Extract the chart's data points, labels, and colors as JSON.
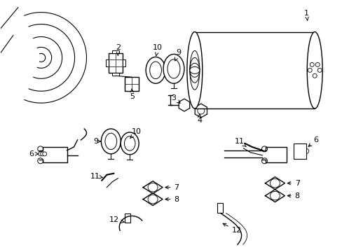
{
  "background_color": "#ffffff",
  "line_color": "#000000",
  "figure_width": 4.89,
  "figure_height": 3.6,
  "dpi": 100
}
